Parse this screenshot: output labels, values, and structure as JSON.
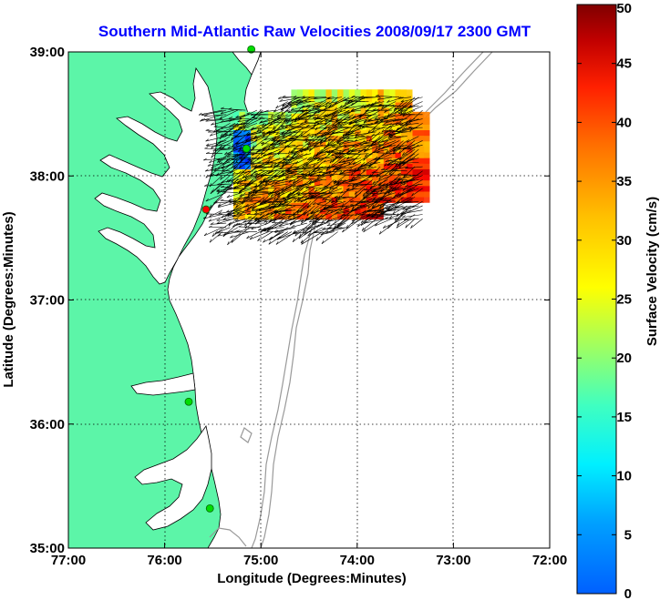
{
  "chart_data": {
    "type": "heatmap",
    "title": "Southern Mid-Atlantic Raw Velocities 2008/09/17 2300 GMT",
    "xlabel": "Longitude (Degrees:Minutes)",
    "ylabel": "Latitude (Degrees:Minutes)",
    "colorbar_label": "Surface Velocity (cm/s)",
    "x_ticks": [
      {
        "value": -77,
        "label": "77:00"
      },
      {
        "value": -76,
        "label": "76:00"
      },
      {
        "value": -75,
        "label": "75:00"
      },
      {
        "value": -74,
        "label": "74:00"
      },
      {
        "value": -73,
        "label": "73:00"
      },
      {
        "value": -72,
        "label": "72:00"
      }
    ],
    "y_ticks": [
      {
        "value": 35,
        "label": "35:00"
      },
      {
        "value": 36,
        "label": "36:00"
      },
      {
        "value": 37,
        "label": "37:00"
      },
      {
        "value": 38,
        "label": "38:00"
      },
      {
        "value": 39,
        "label": "39:00"
      }
    ],
    "xlim": [
      -77,
      -72
    ],
    "ylim": [
      35,
      39
    ],
    "colorbar_ticks": [
      0,
      5,
      10,
      15,
      20,
      25,
      30,
      35,
      40,
      45,
      50
    ],
    "colorbar_range": [
      0,
      50
    ],
    "grid": true,
    "colormap": "jet",
    "land_color": "#5cf5a8",
    "contour_color": "#999999",
    "velocity_field": {
      "lon_range": [
        -75.2,
        -73.3
      ],
      "lat_range": [
        37.7,
        38.65
      ],
      "typical_range_cm_s": [
        10,
        50
      ]
    },
    "stations": [
      {
        "lon": -75.1,
        "lat": 39.02,
        "color": "#00dd00"
      },
      {
        "lon": -75.15,
        "lat": 38.22,
        "color": "#00dd00"
      },
      {
        "lon": -75.57,
        "lat": 37.73,
        "color": "#ff0000"
      },
      {
        "lon": -75.75,
        "lat": 36.18,
        "color": "#00dd00"
      },
      {
        "lon": -75.53,
        "lat": 35.32,
        "color": "#00dd00"
      }
    ]
  }
}
